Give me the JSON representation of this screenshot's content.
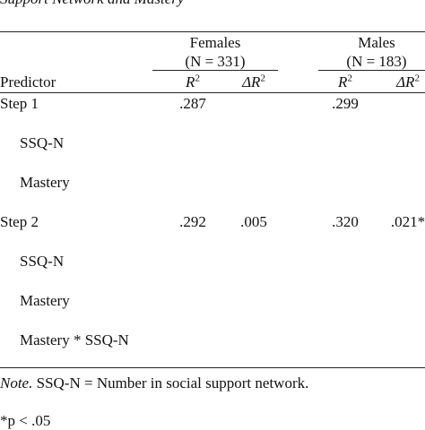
{
  "title": "Support Network and Mastery",
  "table": {
    "groups": [
      {
        "name": "Females",
        "sample": "(N = 331)"
      },
      {
        "name": "Males",
        "sample": "(N = 183)"
      }
    ],
    "predictor_header": "Predictor",
    "stat_headers": [
      {
        "base": "R",
        "sup": "2"
      },
      {
        "base": "ΔR",
        "sup": "2"
      },
      {
        "base": "R",
        "sup": "2"
      },
      {
        "base": "ΔR",
        "sup": "2"
      }
    ],
    "steps": [
      {
        "label": "Step 1",
        "values": [
          ".287",
          null,
          ".299",
          null
        ],
        "predictors": [
          "SSQ-N",
          "Mastery"
        ]
      },
      {
        "label": "Step 2",
        "values": [
          ".292",
          ".005",
          ".320",
          ".021*"
        ],
        "predictors": [
          "SSQ-N",
          "Mastery",
          "Mastery * SSQ-N"
        ]
      }
    ]
  },
  "note": {
    "lead": "Note.",
    "text": " SSQ-N = Number in social support network."
  },
  "footnote": "*p < .05"
}
